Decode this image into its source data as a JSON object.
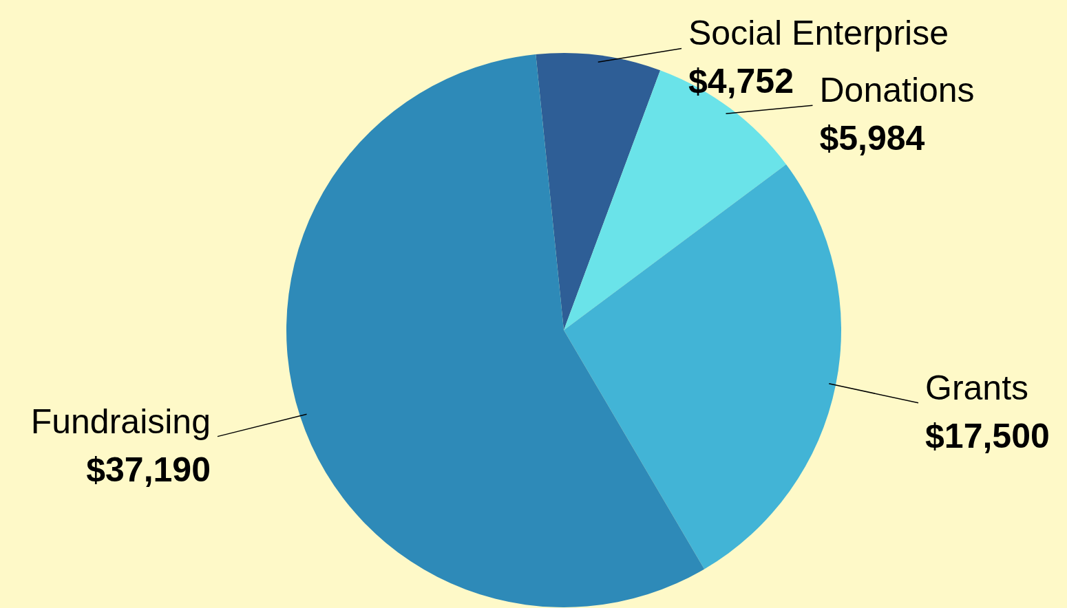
{
  "chart_data": {
    "type": "pie",
    "categories": [
      "Social Enterprise",
      "Donations",
      "Grants",
      "Fundraising"
    ],
    "values": [
      4752,
      5984,
      17500,
      37190
    ],
    "colors": [
      "#2e5e96",
      "#6ae3e9",
      "#42b4d6",
      "#2e8ab8"
    ],
    "value_labels": [
      "$4,752",
      "$5,984",
      "$17,500",
      "$37,190"
    ]
  }
}
